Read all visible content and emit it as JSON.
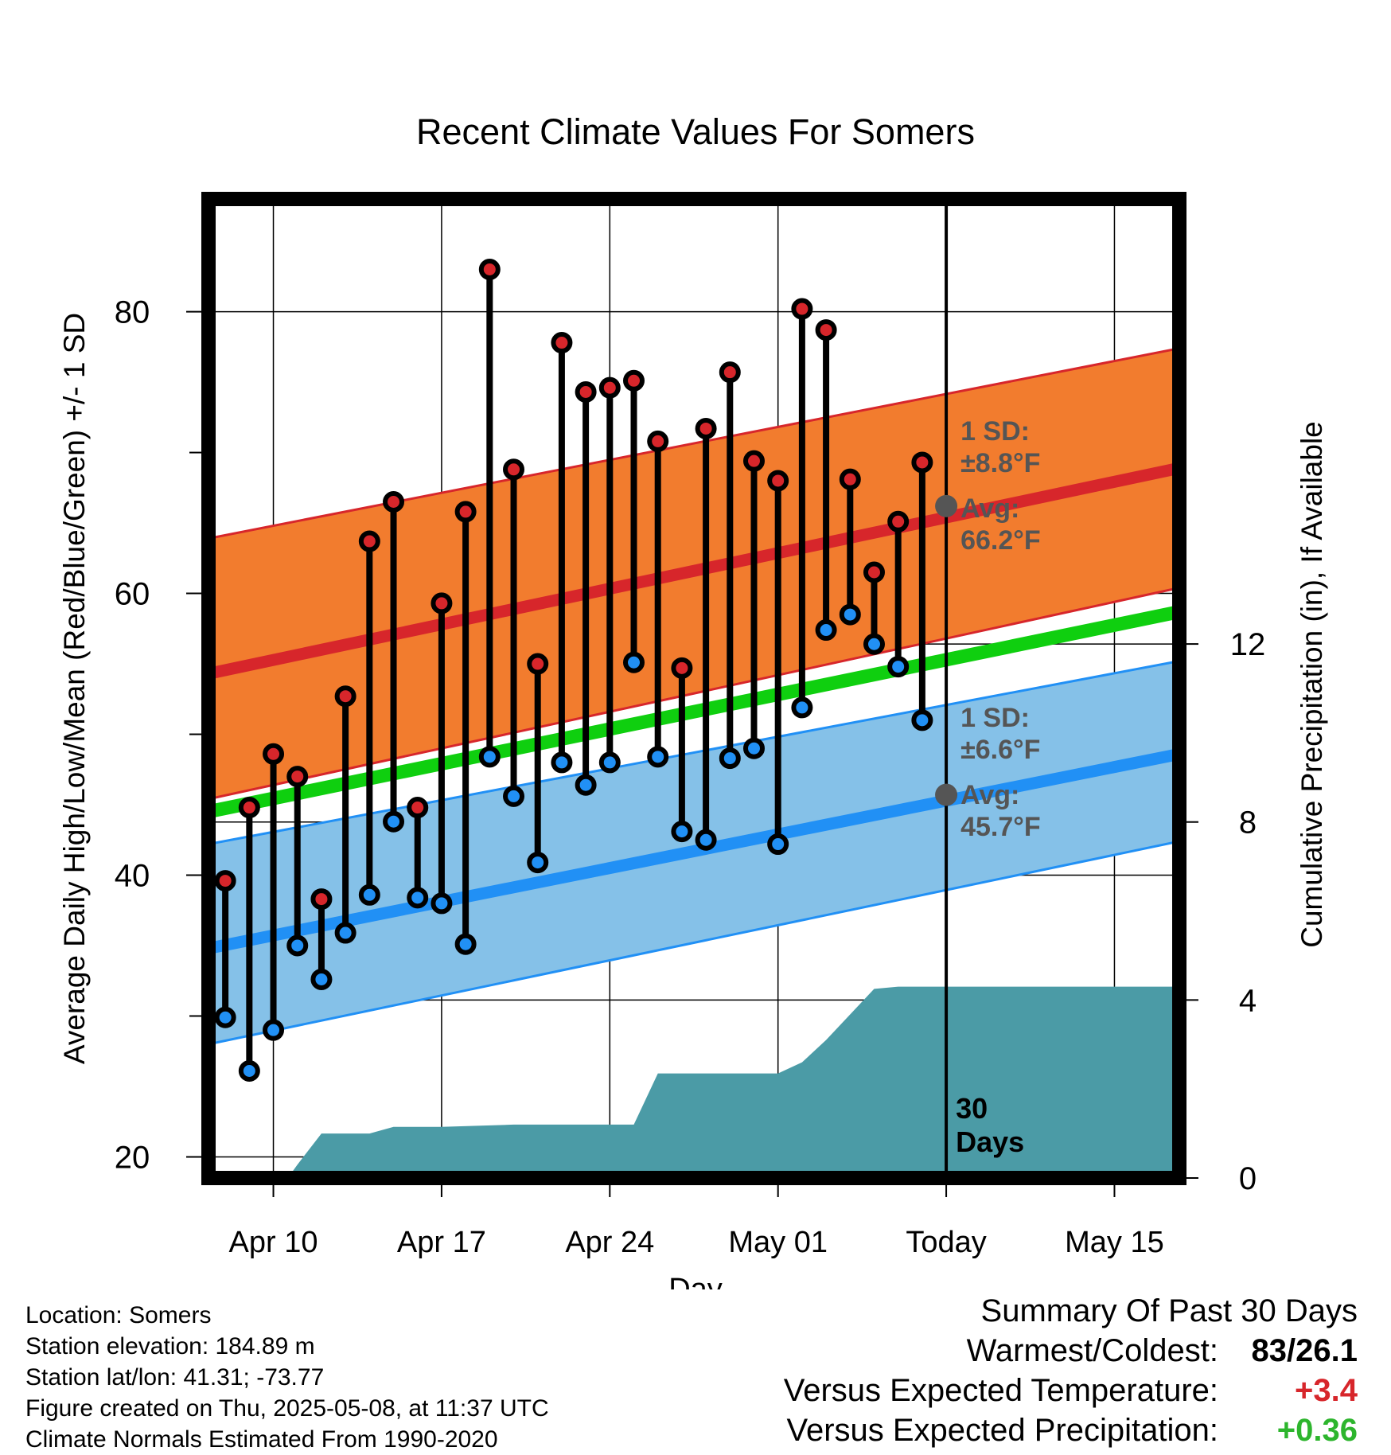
{
  "chart_data": {
    "type": "line",
    "title": "Recent Climate Values For Somers",
    "xlabel": "Day",
    "ylabel": "Average Daily High/Low/Mean (Red/Blue/Green) +/- 1 SD",
    "y2label": "Cumulative Precipitation (in), If Available",
    "x_tick_labels": [
      "Apr 10",
      "Apr 17",
      "Apr 24",
      "May 01",
      "Today",
      "May 15"
    ],
    "x_tick_days": [
      10,
      17,
      24,
      31,
      38,
      45
    ],
    "x_range_days": [
      7.3,
      47.7
    ],
    "ylim": [
      18.5,
      88
    ],
    "y_ticks": [
      20,
      40,
      60,
      80
    ],
    "y2lim": [
      0,
      22
    ],
    "y2_ticks": [
      0,
      4,
      8,
      12
    ],
    "grid": true,
    "today_day": 38,
    "today_label": "30\nDays",
    "high_band": {
      "sd_label": "1 SD:",
      "sd_value": "±8.8°F",
      "avg_label": "Avg:",
      "avg_value": "66.2°F",
      "avg_at_today": 66.2,
      "mean_start": 54.3,
      "mean_end": 68.9,
      "upper_start": 63.9,
      "upper_end": 77.4,
      "lower_start": 45.4,
      "lower_end": 60.4
    },
    "low_band": {
      "sd_label": "1 SD:",
      "sd_value": "±6.6°F",
      "avg_label": "Avg:",
      "avg_value": "45.7°F",
      "avg_at_today": 45.7,
      "mean_start": 34.8,
      "mean_end": 48.6,
      "upper_start": 42.2,
      "upper_end": 55.2,
      "lower_start": 28.0,
      "lower_end": 42.4
    },
    "mean_line": {
      "start": 44.5,
      "end": 58.7
    },
    "colors": {
      "high_band": "#f27c2e",
      "high_line": "#d7262b",
      "low_band": "#85c1e8",
      "low_line": "#2190f5",
      "mean_line": "#0fcf0f",
      "precip": "#4b9ba6",
      "high_dot": "#d7262b",
      "low_dot": "#2190f5",
      "avg_dot": "#555555",
      "annotation": "#555555"
    },
    "daily": {
      "day": [
        8,
        9,
        10,
        11,
        12,
        13,
        14,
        15,
        16,
        17,
        18,
        19,
        20,
        21,
        22,
        23,
        24,
        25,
        26,
        27,
        28,
        29,
        30,
        31,
        32,
        33,
        34,
        35,
        36,
        37
      ],
      "high": [
        39.6,
        44.8,
        48.6,
        47.0,
        38.3,
        52.7,
        63.7,
        66.5,
        44.8,
        59.3,
        65.8,
        83.0,
        68.8,
        55.0,
        77.8,
        74.3,
        74.6,
        75.1,
        70.8,
        54.7,
        71.7,
        75.7,
        69.4,
        68.0,
        80.2,
        78.7,
        68.1,
        61.5,
        65.1,
        69.3
      ],
      "low": [
        29.9,
        26.1,
        29.0,
        35.0,
        32.6,
        35.9,
        38.6,
        43.8,
        38.4,
        38.0,
        35.1,
        48.4,
        45.6,
        40.9,
        48.0,
        46.4,
        48.0,
        55.1,
        48.4,
        43.1,
        42.5,
        48.3,
        49.0,
        42.2,
        51.9,
        57.4,
        58.5,
        56.4,
        54.8,
        51.0
      ]
    },
    "precip": {
      "day": [
        7.3,
        10.6,
        11.0,
        12.0,
        14.0,
        15.0,
        17.0,
        20.0,
        25.0,
        26.0,
        30.5,
        31.0,
        32.0,
        33.0,
        35.0,
        36.0,
        37.0,
        38.0,
        47.7
      ],
      "value": [
        0,
        0,
        0.3,
        1.0,
        1.0,
        1.15,
        1.15,
        1.2,
        1.2,
        2.35,
        2.35,
        2.35,
        2.6,
        3.1,
        4.25,
        4.3,
        4.3,
        4.3,
        4.3
      ]
    }
  },
  "info": {
    "location": "Location: Somers",
    "elevation": "Station elevation: 184.89 m",
    "latlon": "Station lat/lon: 41.31; -73.77",
    "created": "Figure created on Thu, 2025-05-08, at 11:37 UTC",
    "normals": "Climate Normals Estimated From 1990-2020"
  },
  "summary": {
    "title": "Summary Of Past 30 Days",
    "warm_cold_label": "Warmest/Coldest:",
    "warm_cold_value": "83/26.1",
    "temp_label": "Versus Expected Temperature:",
    "temp_value": "+3.4",
    "precip_label": "Versus Expected Precipitation:",
    "precip_value": "+0.36"
  }
}
